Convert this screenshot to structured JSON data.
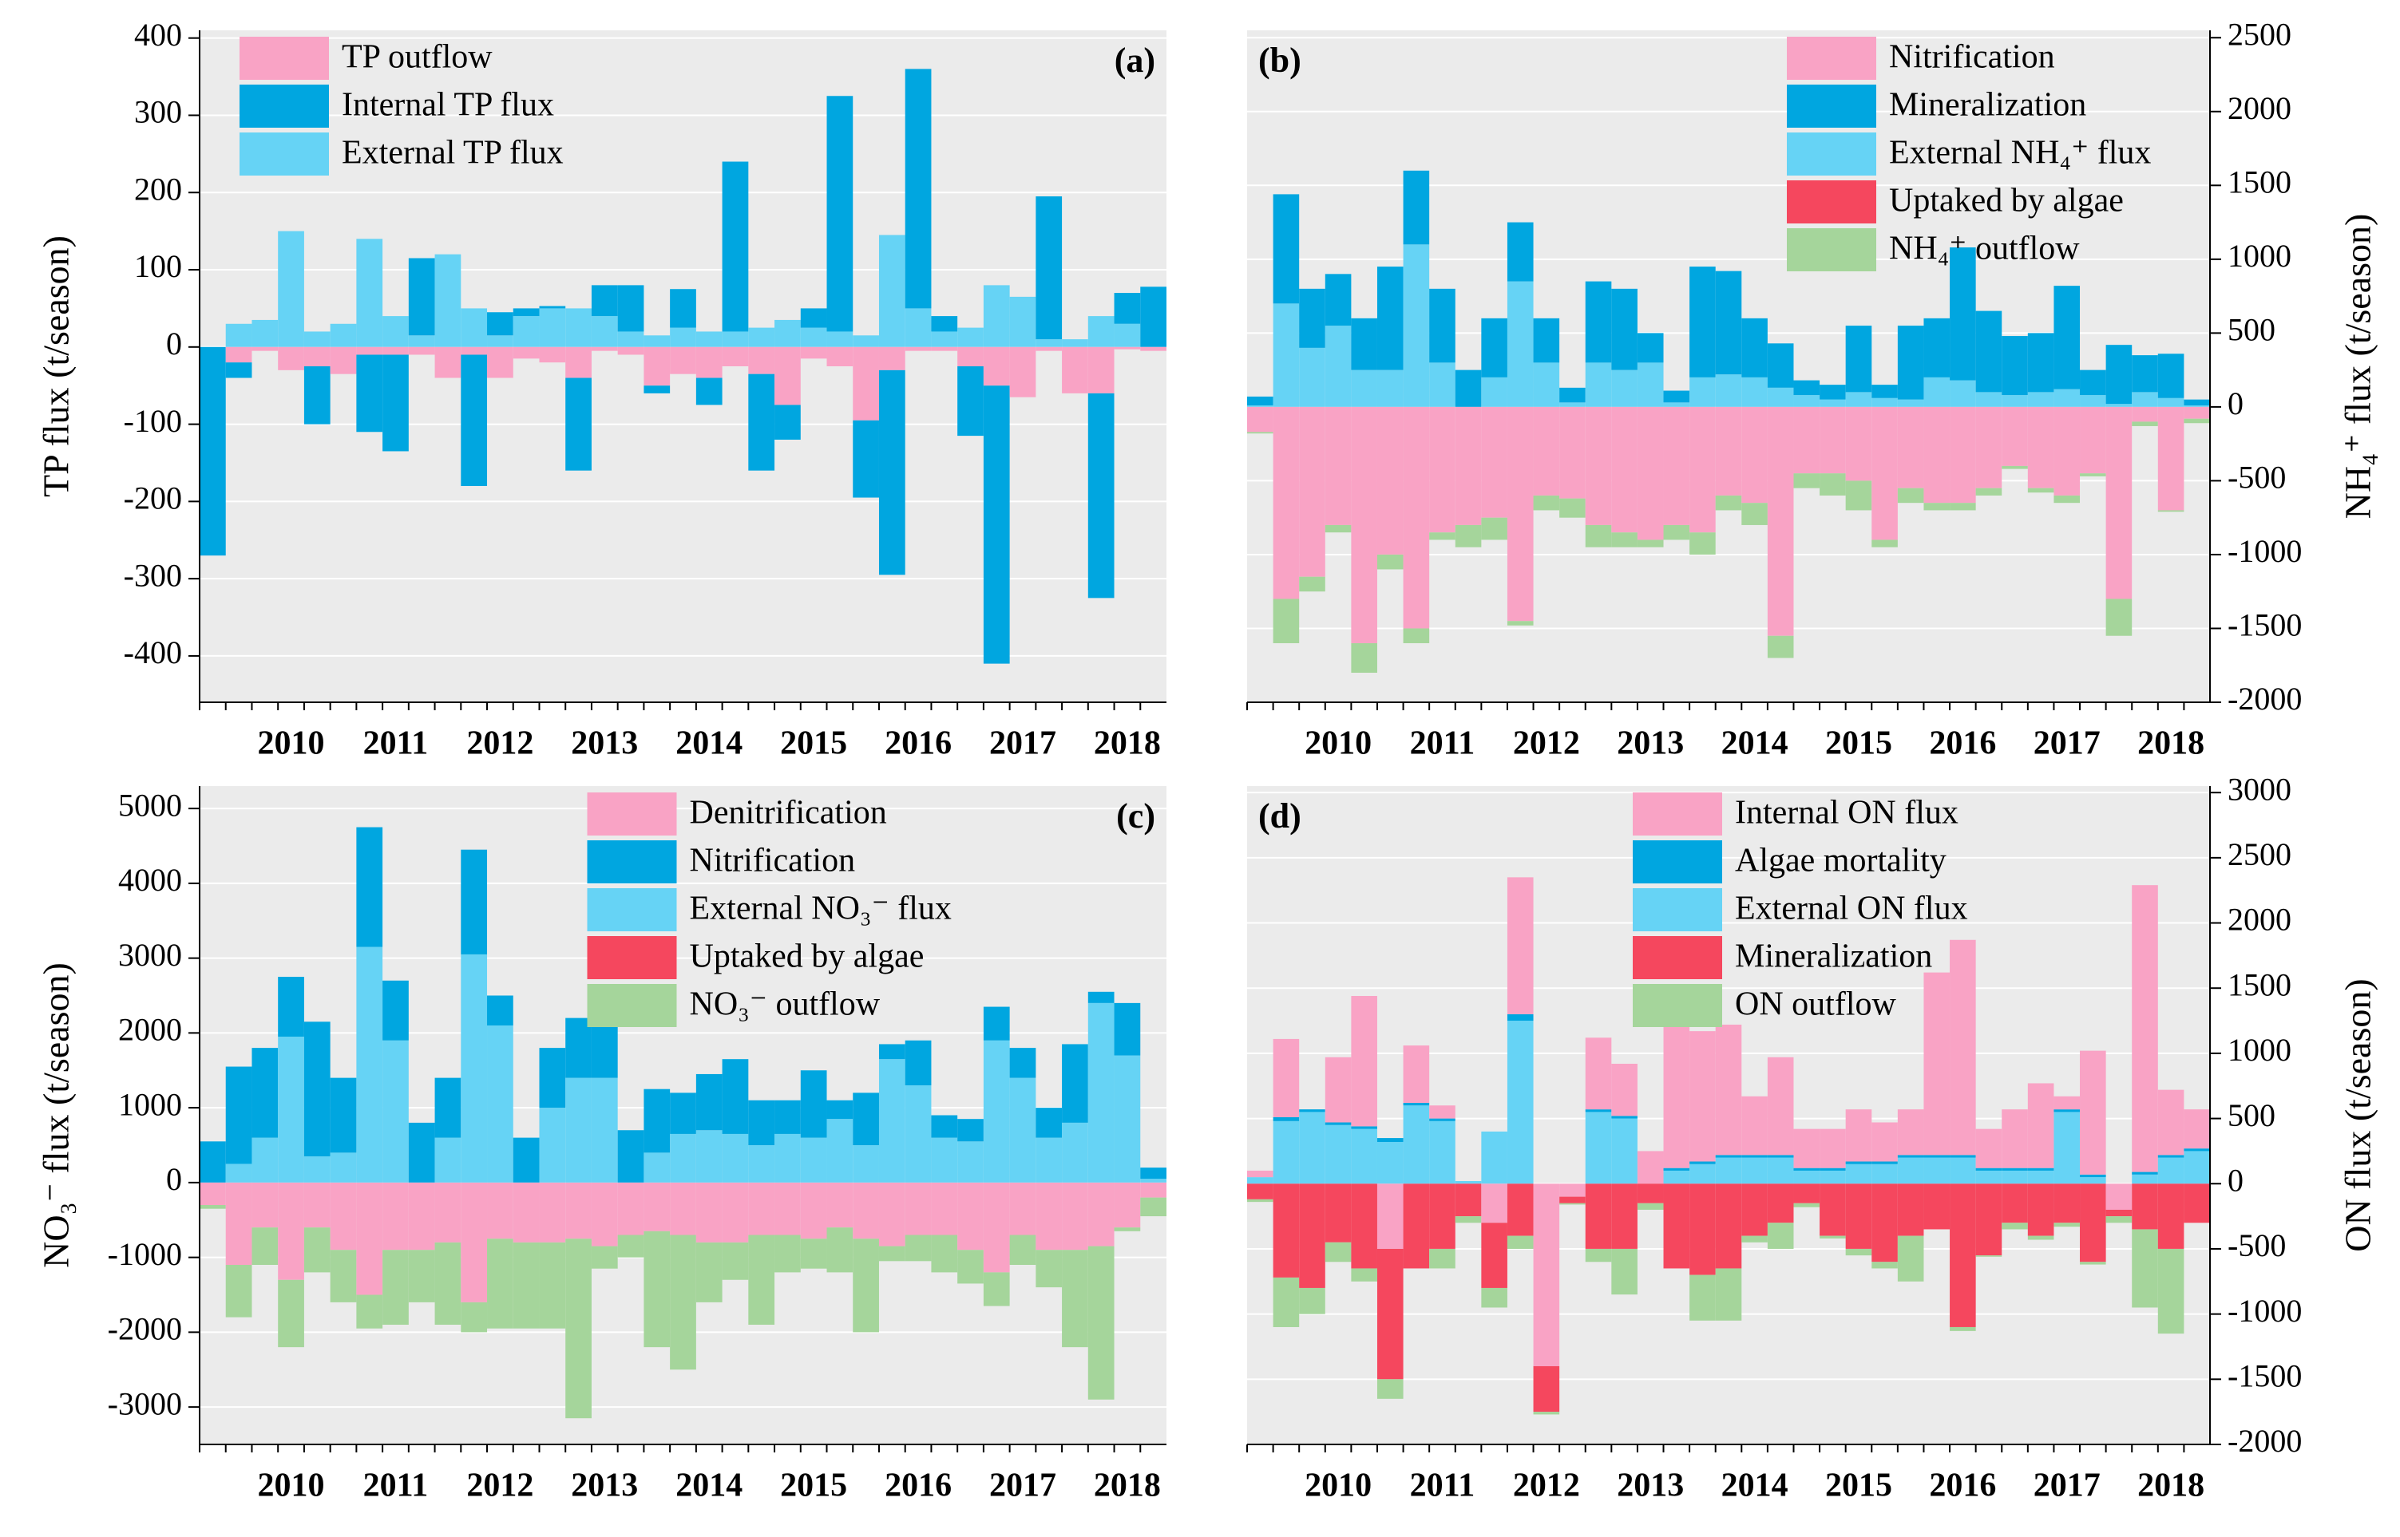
{
  "chart_data": [
    {
      "type": "bar",
      "label": "(a)",
      "ylabel": "TP flux (t/season)",
      "yaxis_side": "left",
      "legend": "upper left",
      "grid": true,
      "categories": [
        null,
        null,
        null,
        "2010",
        null,
        null,
        null,
        "2011",
        null,
        null,
        null,
        "2012",
        null,
        null,
        null,
        "2013",
        null,
        null,
        null,
        "2014",
        null,
        null,
        null,
        "2015",
        null,
        null,
        null,
        "2016",
        null,
        null,
        null,
        "2017",
        null,
        null,
        null,
        "2018",
        null
      ],
      "ylim": [
        -460,
        410
      ],
      "yticks": [
        -400,
        -300,
        -200,
        -100,
        0,
        100,
        200,
        300,
        400
      ],
      "series": [
        {
          "name": "TP outflow",
          "color": "#f9a3c5",
          "values": [
            0,
            -20,
            -5,
            -30,
            -25,
            -35,
            -10,
            -10,
            -10,
            -40,
            -10,
            -40,
            -15,
            -20,
            -40,
            -5,
            -10,
            -50,
            -35,
            -40,
            -25,
            -35,
            -75,
            -15,
            -25,
            -95,
            -30,
            -5,
            -5,
            -25,
            -50,
            -65,
            -5,
            -60,
            -60,
            -3,
            -5
          ]
        },
        {
          "name": "Internal TP flux",
          "color": "#00a6e0",
          "values": [
            -270,
            -20,
            0,
            0,
            -75,
            0,
            -100,
            -125,
            100,
            0,
            -170,
            30,
            10,
            3,
            -120,
            40,
            60,
            -10,
            50,
            -35,
            220,
            -125,
            -45,
            25,
            305,
            -100,
            -265,
            310,
            20,
            -90,
            -360,
            0,
            185,
            0,
            -265,
            40,
            78
          ]
        },
        {
          "name": "External TP flux",
          "color": "#66d3f5",
          "values": [
            0,
            30,
            35,
            150,
            20,
            30,
            140,
            40,
            15,
            120,
            50,
            15,
            40,
            50,
            50,
            40,
            20,
            15,
            25,
            20,
            20,
            25,
            35,
            25,
            20,
            15,
            145,
            50,
            20,
            25,
            80,
            65,
            10,
            10,
            40,
            30,
            0
          ]
        }
      ]
    },
    {
      "type": "bar",
      "label": "(b)",
      "ylabel": "NH₄⁺ flux (t/season)",
      "yaxis_side": "right",
      "legend": "upper right",
      "grid": true,
      "categories": [
        null,
        null,
        null,
        "2010",
        null,
        null,
        null,
        "2011",
        null,
        null,
        null,
        "2012",
        null,
        null,
        null,
        "2013",
        null,
        null,
        null,
        "2014",
        null,
        null,
        null,
        "2015",
        null,
        null,
        null,
        "2016",
        null,
        null,
        null,
        "2017",
        null,
        null,
        null,
        "2018",
        null
      ],
      "ylim": [
        -2000,
        2550
      ],
      "yticks": [
        -2000,
        -1500,
        -1000,
        -500,
        0,
        500,
        1000,
        1500,
        2000,
        2500
      ],
      "series": [
        {
          "name": "Nitrification",
          "color": "#f9a3c5",
          "values": [
            -170,
            -1300,
            -1150,
            -800,
            -1600,
            -1000,
            -1500,
            -850,
            -800,
            -750,
            -1450,
            -600,
            -620,
            -800,
            -850,
            -900,
            -800,
            -850,
            -600,
            -650,
            -1550,
            -450,
            -450,
            -500,
            -900,
            -550,
            -650,
            -650,
            -550,
            -400,
            -550,
            -600,
            -450,
            -1300,
            -100,
            -700,
            -80
          ]
        },
        {
          "name": "Mineralization",
          "color": "#00a6e0",
          "values": [
            60,
            740,
            400,
            350,
            350,
            700,
            500,
            500,
            250,
            400,
            400,
            300,
            100,
            550,
            550,
            200,
            80,
            750,
            700,
            400,
            300,
            100,
            100,
            450,
            90,
            500,
            400,
            900,
            550,
            400,
            400,
            700,
            170,
            400,
            250,
            300,
            40
          ]
        },
        {
          "name": "External NH₄⁺ flux",
          "color": "#66d3f5",
          "values": [
            10,
            700,
            400,
            550,
            250,
            250,
            1100,
            300,
            0,
            200,
            850,
            300,
            30,
            300,
            250,
            300,
            30,
            200,
            220,
            200,
            130,
            80,
            50,
            100,
            60,
            50,
            200,
            180,
            100,
            80,
            100,
            120,
            80,
            20,
            100,
            60,
            10
          ]
        },
        {
          "name": "Uptaked by algae",
          "color": "#f5475e",
          "values": [
            0,
            0,
            0,
            0,
            0,
            0,
            0,
            0,
            0,
            0,
            0,
            0,
            0,
            0,
            0,
            0,
            0,
            0,
            0,
            0,
            0,
            0,
            0,
            0,
            0,
            0,
            0,
            0,
            0,
            0,
            0,
            0,
            0,
            0,
            0,
            0,
            0
          ]
        },
        {
          "name": "NH₄⁺ outflow",
          "color": "#a5d59b",
          "values": [
            -10,
            -300,
            -100,
            -50,
            -200,
            -100,
            -100,
            -50,
            -150,
            -150,
            -30,
            -100,
            -130,
            -150,
            -100,
            -50,
            -100,
            -150,
            -100,
            -150,
            -150,
            -100,
            -150,
            -200,
            -50,
            -100,
            -50,
            -50,
            -50,
            -20,
            -30,
            -50,
            -20,
            -250,
            -30,
            -10,
            -30
          ]
        }
      ]
    },
    {
      "type": "bar",
      "label": "(c)",
      "ylabel": "NO₃⁻ flux (t/season)",
      "yaxis_side": "left",
      "legend": "upper center",
      "grid": true,
      "categories": [
        null,
        null,
        null,
        "2010",
        null,
        null,
        null,
        "2011",
        null,
        null,
        null,
        "2012",
        null,
        null,
        null,
        "2013",
        null,
        null,
        null,
        "2014",
        null,
        null,
        null,
        "2015",
        null,
        null,
        null,
        "2016",
        null,
        null,
        null,
        "2017",
        null,
        null,
        null,
        "2018",
        null
      ],
      "ylim": [
        -3500,
        5300
      ],
      "yticks": [
        -3000,
        -2000,
        -1000,
        0,
        1000,
        2000,
        3000,
        4000,
        5000
      ],
      "series": [
        {
          "name": "Denitrification",
          "color": "#f9a3c5",
          "values": [
            -300,
            -1100,
            -600,
            -1300,
            -600,
            -900,
            -1500,
            -900,
            -900,
            -800,
            -1600,
            -750,
            -800,
            -800,
            -750,
            -850,
            -700,
            -650,
            -700,
            -800,
            -800,
            -700,
            -700,
            -750,
            -600,
            -750,
            -850,
            -700,
            -700,
            -900,
            -1200,
            -700,
            -900,
            -900,
            -850,
            -600,
            -200
          ]
        },
        {
          "name": "Nitrification",
          "color": "#00a6e0",
          "values": [
            550,
            1300,
            1200,
            800,
            1800,
            1000,
            1600,
            800,
            800,
            800,
            1400,
            400,
            600,
            800,
            800,
            1000,
            700,
            850,
            550,
            750,
            1000,
            600,
            450,
            900,
            250,
            700,
            200,
            600,
            300,
            300,
            450,
            400,
            400,
            1050,
            150,
            700,
            150
          ]
        },
        {
          "name": "External NO₃⁻ flux",
          "color": "#66d3f5",
          "values": [
            0,
            250,
            600,
            1950,
            350,
            400,
            3150,
            1900,
            0,
            600,
            3050,
            2100,
            0,
            1000,
            1400,
            1400,
            0,
            400,
            650,
            700,
            650,
            500,
            650,
            600,
            850,
            500,
            1650,
            1300,
            600,
            550,
            1900,
            1400,
            600,
            800,
            2400,
            1700,
            50
          ]
        },
        {
          "name": "Uptaked by algae",
          "color": "#f5475e",
          "values": [
            0,
            0,
            0,
            0,
            0,
            0,
            0,
            0,
            0,
            0,
            0,
            0,
            0,
            0,
            0,
            0,
            0,
            0,
            0,
            0,
            0,
            0,
            0,
            0,
            0,
            0,
            0,
            0,
            0,
            0,
            0,
            0,
            0,
            0,
            0,
            0,
            0
          ]
        },
        {
          "name": "NO₃⁻ outflow",
          "color": "#a5d59b",
          "values": [
            -50,
            -700,
            -500,
            -900,
            -600,
            -700,
            -450,
            -1000,
            -700,
            -1100,
            -400,
            -1200,
            -1150,
            -1150,
            -2400,
            -300,
            -300,
            -1550,
            -1800,
            -800,
            -500,
            -1200,
            -500,
            -400,
            -600,
            -1250,
            -200,
            -350,
            -500,
            -450,
            -450,
            -400,
            -500,
            -1300,
            -2050,
            -50,
            -250
          ]
        }
      ]
    },
    {
      "type": "bar",
      "label": "(d)",
      "ylabel": "ON flux (t/season)",
      "yaxis_side": "right",
      "legend": "upper center",
      "grid": true,
      "categories": [
        null,
        null,
        null,
        "2010",
        null,
        null,
        null,
        "2011",
        null,
        null,
        null,
        "2012",
        null,
        null,
        null,
        "2013",
        null,
        null,
        null,
        "2014",
        null,
        null,
        null,
        "2015",
        null,
        null,
        null,
        "2016",
        null,
        null,
        null,
        "2017",
        null,
        null,
        null,
        "2018",
        null
      ],
      "ylim": [
        -2000,
        3050
      ],
      "yticks": [
        -2000,
        -1500,
        -1000,
        -500,
        0,
        500,
        1000,
        1500,
        2000,
        2500,
        3000
      ],
      "series": [
        {
          "name": "Internal ON flux",
          "color": "#f9a3c5",
          "values": [
            50,
            600,
            0,
            500,
            1000,
            -500,
            440,
            100,
            0,
            -300,
            1050,
            -1400,
            -100,
            550,
            400,
            250,
            1150,
            1000,
            1000,
            450,
            750,
            300,
            300,
            400,
            300,
            350,
            1400,
            1650,
            300,
            450,
            650,
            100,
            950,
            -200,
            2200,
            500,
            300
          ]
        },
        {
          "name": "Algae mortality",
          "color": "#00a6e0",
          "values": [
            0,
            30,
            20,
            20,
            20,
            30,
            20,
            20,
            0,
            0,
            50,
            0,
            0,
            20,
            20,
            0,
            20,
            20,
            20,
            20,
            20,
            20,
            20,
            20,
            20,
            20,
            20,
            20,
            20,
            20,
            20,
            20,
            20,
            0,
            20,
            20,
            20
          ]
        },
        {
          "name": "External ON flux",
          "color": "#66d3f5",
          "values": [
            50,
            480,
            550,
            450,
            420,
            320,
            600,
            480,
            20,
            400,
            1250,
            0,
            0,
            550,
            500,
            0,
            100,
            150,
            200,
            200,
            200,
            100,
            100,
            150,
            150,
            200,
            200,
            200,
            100,
            100,
            100,
            550,
            50,
            0,
            70,
            200,
            250
          ]
        },
        {
          "name": "Mineralization",
          "color": "#f5475e",
          "values": [
            -120,
            -720,
            -800,
            -450,
            -650,
            -1000,
            -650,
            -500,
            -250,
            -500,
            -400,
            -350,
            -50,
            -500,
            -500,
            -150,
            -650,
            -700,
            -650,
            -400,
            -300,
            -150,
            -400,
            -500,
            -600,
            -400,
            -350,
            -1100,
            -550,
            -300,
            -400,
            -300,
            -600,
            -50,
            -350,
            -500,
            -300
          ]
        },
        {
          "name": "ON outflow",
          "color": "#a5d59b",
          "values": [
            -20,
            -380,
            -200,
            -150,
            -100,
            -150,
            0,
            -150,
            -50,
            -150,
            -100,
            -20,
            -10,
            -100,
            -350,
            -50,
            0,
            -350,
            -400,
            -50,
            -200,
            -30,
            -20,
            -50,
            -50,
            -350,
            0,
            -30,
            -10,
            -50,
            -30,
            -30,
            -20,
            -50,
            -600,
            -650,
            0
          ]
        }
      ]
    }
  ]
}
